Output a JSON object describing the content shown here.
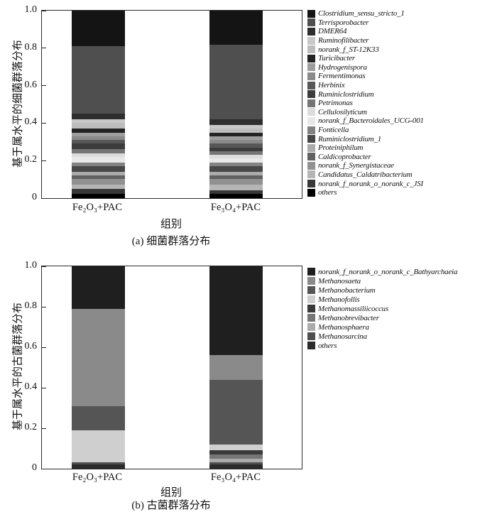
{
  "chart_data": [
    {
      "type": "bar",
      "subtype": "stacked-100pct",
      "caption": "(a) 细菌群落分布",
      "ylabel": "基于属水平的细菌群落分布",
      "xlabel": "组别",
      "categories": [
        "Fe₂O₃+PAC",
        "Fe₃O₄+PAC"
      ],
      "yticks": [
        "1.0",
        "0.8",
        "0.6",
        "0.4",
        "0.2",
        "0"
      ],
      "ylim": [
        0,
        1
      ],
      "legend_position": "right",
      "stack_order": "legend order, top of bar to bottom",
      "series": [
        {
          "name": "Clostridium_sensu_stricto_1",
          "color": "#141414",
          "values": [
            0.19,
            0.18
          ]
        },
        {
          "name": "Terrisporobacter",
          "color": "#4f4f4f",
          "values": [
            0.36,
            0.4
          ]
        },
        {
          "name": "DMER64",
          "color": "#2e2e2e",
          "values": [
            0.03,
            0.03
          ]
        },
        {
          "name": "Ruminofilibacter",
          "color": "#c8c8c8",
          "values": [
            0.02,
            0.02
          ]
        },
        {
          "name": "norank_f_ST-12K33",
          "color": "#bdbdbd",
          "values": [
            0.03,
            0.02
          ]
        },
        {
          "name": "Turicibacter",
          "color": "#232323",
          "values": [
            0.02,
            0.02
          ]
        },
        {
          "name": "Hydrogenispora",
          "color": "#9e9e9e",
          "values": [
            0.02,
            0.02
          ]
        },
        {
          "name": "Fermentimonas",
          "color": "#8a8a8a",
          "values": [
            0.02,
            0.02
          ]
        },
        {
          "name": "Herbinix",
          "color": "#575757",
          "values": [
            0.02,
            0.02
          ]
        },
        {
          "name": "Ruminiclostridium",
          "color": "#3c3c3c",
          "values": [
            0.03,
            0.02
          ]
        },
        {
          "name": "Petrimonas",
          "color": "#757575",
          "values": [
            0.02,
            0.02
          ]
        },
        {
          "name": "Cellulosilyticum",
          "color": "#dcdcdc",
          "values": [
            0.02,
            0.02
          ]
        },
        {
          "name": "norank_f_Bacteroidales_UCG-001",
          "color": "#e8e8e8",
          "values": [
            0.03,
            0.02
          ]
        },
        {
          "name": "Fonticella",
          "color": "#828282",
          "values": [
            0.02,
            0.02
          ]
        },
        {
          "name": "Ruminiclostridium_1",
          "color": "#474747",
          "values": [
            0.03,
            0.03
          ]
        },
        {
          "name": "Proteiniphilum",
          "color": "#ababab",
          "values": [
            0.02,
            0.02
          ]
        },
        {
          "name": "Caldicoprobacter",
          "color": "#616161",
          "values": [
            0.02,
            0.02
          ]
        },
        {
          "name": "norank_f_Synergistaceae",
          "color": "#919191",
          "values": [
            0.03,
            0.03
          ]
        },
        {
          "name": "Candidatus_Caldatribacterium",
          "color": "#b5b5b5",
          "values": [
            0.02,
            0.03
          ]
        },
        {
          "name": "norank_f_norank_o_norank_c_JSI",
          "color": "#383838",
          "values": [
            0.03,
            0.02
          ]
        },
        {
          "name": "others",
          "color": "#000000",
          "values": [
            0.02,
            0.02
          ]
        }
      ]
    },
    {
      "type": "bar",
      "subtype": "stacked-100pct",
      "caption": "(b) 古菌群落分布",
      "ylabel": "基于属水平的古菌群落分布",
      "xlabel": "组别",
      "categories": [
        "Fe₂O₃+PAC",
        "Fe₃O₄+PAC"
      ],
      "yticks": [
        "1.0",
        "0.8",
        "0.6",
        "0.4",
        "0.2",
        "0"
      ],
      "ylim": [
        0,
        1
      ],
      "legend_position": "right",
      "stack_order": "legend order, top of bar to bottom",
      "series": [
        {
          "name": "norank_f_norank_o_norank_c_Bathyarchaeia",
          "color": "#1f1f1f",
          "values": [
            0.21,
            0.44
          ]
        },
        {
          "name": "Methanosaeta",
          "color": "#8a8a8a",
          "values": [
            0.48,
            0.12
          ]
        },
        {
          "name": "Methanobacterium",
          "color": "#555555",
          "values": [
            0.12,
            0.32
          ]
        },
        {
          "name": "Methanofollis",
          "color": "#cfcfcf",
          "values": [
            0.16,
            0.03
          ]
        },
        {
          "name": "Methanomassiliicoccus",
          "color": "#3a3a3a",
          "values": [
            0.0,
            0.02
          ]
        },
        {
          "name": "Methanobrevibacter",
          "color": "#767676",
          "values": [
            0.0,
            0.02
          ]
        },
        {
          "name": "Methanosphaera",
          "color": "#ababab",
          "values": [
            0.0,
            0.02
          ]
        },
        {
          "name": "Methanosarcina",
          "color": "#4f4f4f",
          "values": [
            0.01,
            0.01
          ]
        },
        {
          "name": "others",
          "color": "#2b2b2b",
          "values": [
            0.02,
            0.02
          ]
        }
      ]
    }
  ]
}
